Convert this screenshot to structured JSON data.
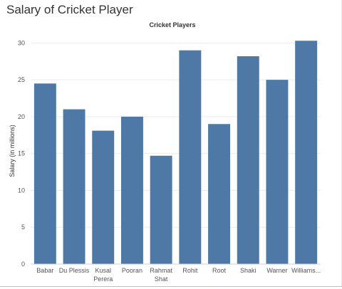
{
  "page": {
    "title": "Salary of Cricket Player"
  },
  "chart_data": {
    "type": "bar",
    "title": "Cricket Players",
    "xlabel": "",
    "ylabel": "Salary (in millions)",
    "ylim": [
      0,
      31
    ],
    "yticks": [
      0,
      5,
      10,
      15,
      20,
      25,
      30
    ],
    "categories": [
      "Babar",
      "Du Plessis",
      "Kusal Perera",
      "Pooran",
      "Rahmat Shat",
      "Rohit",
      "Root",
      "Shaki",
      "Warner",
      "Williams..."
    ],
    "category_lines": [
      [
        "Babar"
      ],
      [
        "Du Plessis"
      ],
      [
        "Kusal",
        "Perera"
      ],
      [
        "Pooran"
      ],
      [
        "Rahmat",
        "Shat"
      ],
      [
        "Rohit"
      ],
      [
        "Root"
      ],
      [
        "Shaki"
      ],
      [
        "Warner"
      ],
      [
        "Williams..."
      ]
    ],
    "values": [
      24.5,
      21.0,
      18.1,
      20.0,
      14.7,
      29.0,
      19.0,
      28.2,
      25.0,
      30.3
    ],
    "grid": true,
    "legend": "none",
    "colors": {
      "bar": "#4e79a7",
      "grid": "#ececec",
      "axis": "#cccccc",
      "text": "#555555",
      "title": "#333333"
    }
  }
}
